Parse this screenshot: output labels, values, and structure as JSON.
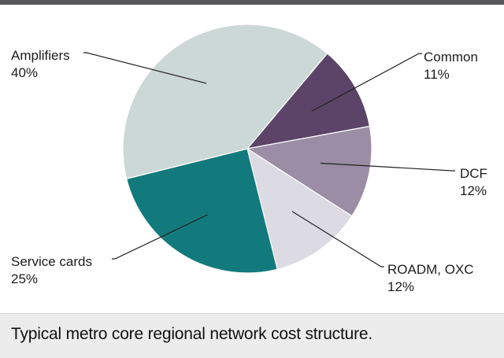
{
  "chart_data": {
    "type": "pie",
    "title": "",
    "caption": "Typical metro core regional network cost structure.",
    "slices": [
      {
        "label": "Common",
        "value": 11,
        "value_label": "11%",
        "color": "#5b4468"
      },
      {
        "label": "DCF",
        "value": 12,
        "value_label": "12%",
        "color": "#9b8da6"
      },
      {
        "label": "ROADM, OXC",
        "value": 12,
        "value_label": "12%",
        "color": "#dcdae2"
      },
      {
        "label": "Service cards",
        "value": 25,
        "value_label": "25%",
        "color": "#127a7c"
      },
      {
        "label": "Amplifiers",
        "value": 40,
        "value_label": "40%",
        "color": "#ccd8d6"
      }
    ]
  }
}
